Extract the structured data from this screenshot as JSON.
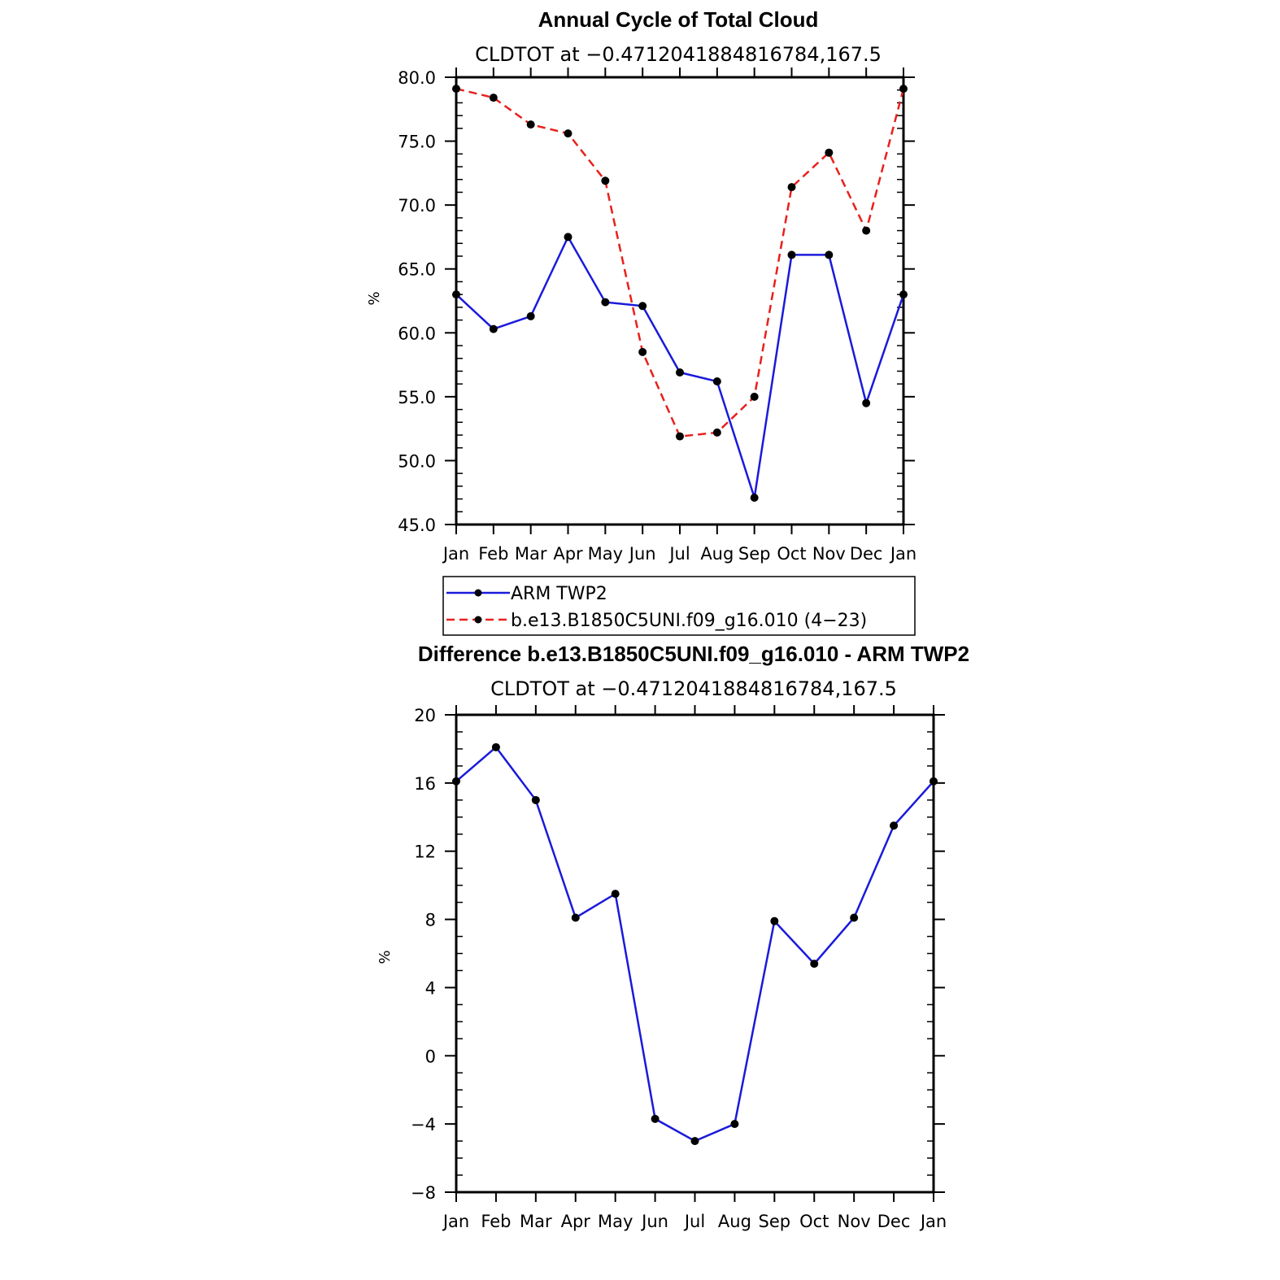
{
  "chart_data": [
    {
      "type": "line",
      "title": "Annual Cycle of Total Cloud",
      "subtitle": "CLDTOT at −0.4712041884816784,167.5",
      "ylabel": "%",
      "ylim": [
        45,
        80
      ],
      "yticks": [
        45,
        50,
        55,
        60,
        65,
        70,
        75,
        80
      ],
      "ytick_labels": [
        "45.0",
        "50.0",
        "55.0",
        "60.0",
        "65.0",
        "70.0",
        "75.0",
        "80.0"
      ],
      "categories": [
        "Jan",
        "Feb",
        "Mar",
        "Apr",
        "May",
        "Jun",
        "Jul",
        "Aug",
        "Sep",
        "Oct",
        "Nov",
        "Dec",
        "Jan"
      ],
      "series": [
        {
          "name": "ARM TWP2",
          "color": "#1a1adb",
          "dash": "solid",
          "values": [
            63.0,
            60.3,
            61.3,
            67.5,
            62.4,
            62.1,
            56.9,
            56.2,
            47.1,
            66.1,
            66.1,
            54.5,
            63.0
          ]
        },
        {
          "name": "b.e13.B1850C5UNI.f09_g16.010 (4−23)",
          "color": "#e8201c",
          "dash": "dashed",
          "values": [
            79.1,
            78.4,
            76.3,
            75.6,
            71.9,
            58.5,
            51.9,
            52.2,
            55.0,
            71.4,
            74.1,
            68.0,
            79.1
          ]
        }
      ],
      "legend": "below"
    },
    {
      "type": "line",
      "title": "Difference b.e13.B1850C5UNI.f09_g16.010 - ARM TWP2",
      "subtitle": "CLDTOT at −0.4712041884816784,167.5",
      "ylabel": "%",
      "ylim": [
        -8,
        20
      ],
      "yticks": [
        -8,
        -4,
        0,
        4,
        8,
        12,
        16,
        20
      ],
      "ytick_labels": [
        "−8",
        "−4",
        "0",
        "4",
        "8",
        "12",
        "16",
        "20"
      ],
      "categories": [
        "Jan",
        "Feb",
        "Mar",
        "Apr",
        "May",
        "Jun",
        "Jul",
        "Aug",
        "Sep",
        "Oct",
        "Nov",
        "Dec",
        "Jan"
      ],
      "series": [
        {
          "name": "Difference",
          "color": "#1a1adb",
          "dash": "solid",
          "values": [
            16.1,
            18.1,
            15.0,
            8.1,
            9.5,
            -3.7,
            -5.0,
            -4.0,
            7.9,
            5.4,
            8.1,
            13.5,
            16.1
          ]
        }
      ]
    }
  ]
}
